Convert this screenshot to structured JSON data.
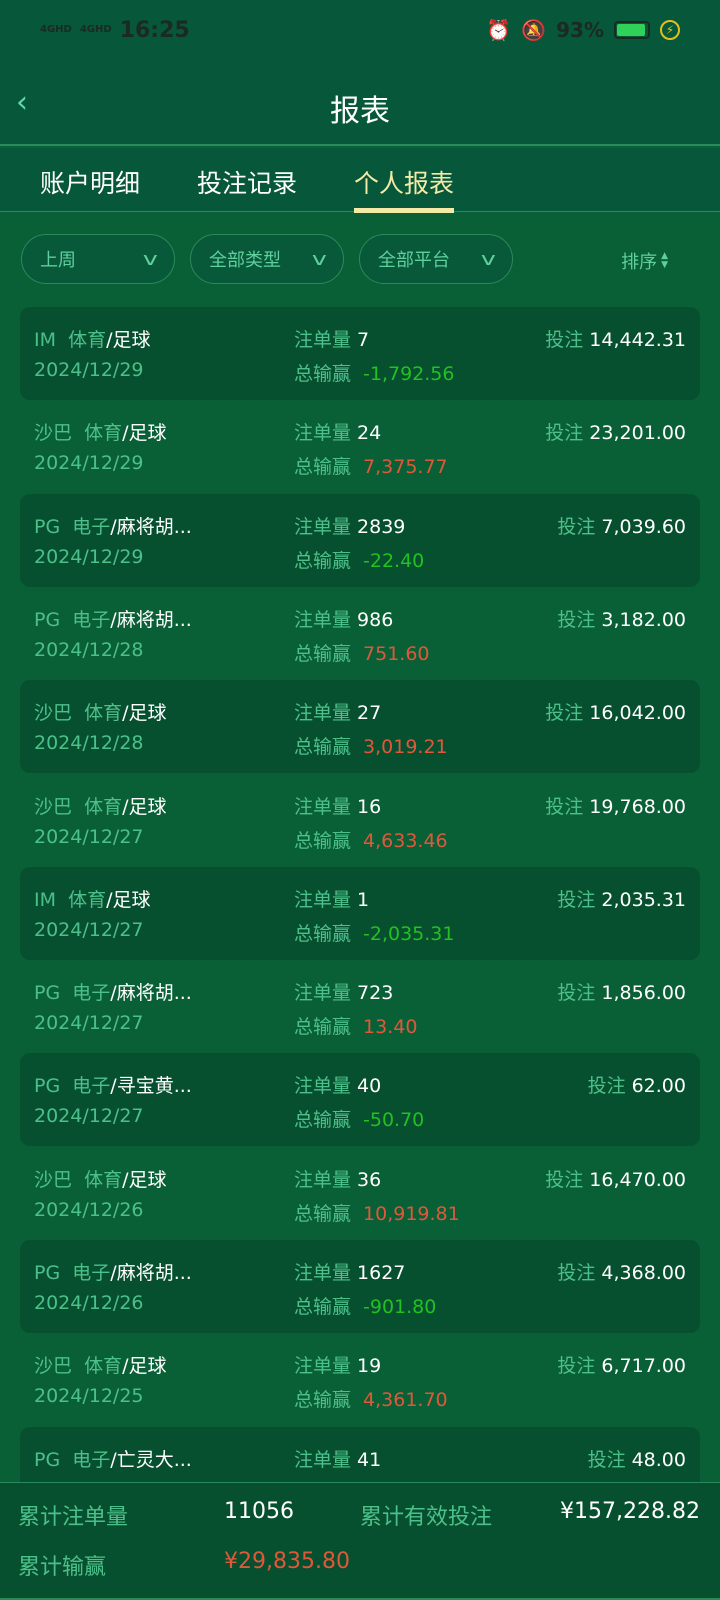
{
  "status_bar": {
    "network1": "4GHD",
    "network2": "4GHD",
    "time": "16:25",
    "battery": "93%",
    "battery_level": 0.93
  },
  "header": {
    "title": "报表"
  },
  "tabs": [
    {
      "label": "账户明细"
    },
    {
      "label": "投注记录"
    },
    {
      "label": "个人报表",
      "active": true
    }
  ],
  "filters": {
    "period": "上周",
    "type": "全部类型",
    "platform": "全部平台",
    "sort": "排序"
  },
  "labels": {
    "bets": "注单量",
    "winloss": "总输赢",
    "stake": "投注"
  },
  "rows": [
    {
      "platform": "IM",
      "cat": "体育",
      "game": "/足球",
      "date": "2024/12/29",
      "bets": "7",
      "winloss": "-1,792.56",
      "stake": "14,442.31"
    },
    {
      "platform": "沙巴",
      "cat": "体育",
      "game": "/足球",
      "date": "2024/12/29",
      "bets": "24",
      "winloss": "7,375.77",
      "stake": "23,201.00"
    },
    {
      "platform": "PG",
      "cat": "电子",
      "game": "/麻将胡...",
      "date": "2024/12/29",
      "bets": "2839",
      "winloss": "-22.40",
      "stake": "7,039.60"
    },
    {
      "platform": "PG",
      "cat": "电子",
      "game": "/麻将胡...",
      "date": "2024/12/28",
      "bets": "986",
      "winloss": "751.60",
      "stake": "3,182.00"
    },
    {
      "platform": "沙巴",
      "cat": "体育",
      "game": "/足球",
      "date": "2024/12/28",
      "bets": "27",
      "winloss": "3,019.21",
      "stake": "16,042.00"
    },
    {
      "platform": "沙巴",
      "cat": "体育",
      "game": "/足球",
      "date": "2024/12/27",
      "bets": "16",
      "winloss": "4,633.46",
      "stake": "19,768.00"
    },
    {
      "platform": "IM",
      "cat": "体育",
      "game": "/足球",
      "date": "2024/12/27",
      "bets": "1",
      "winloss": "-2,035.31",
      "stake": "2,035.31"
    },
    {
      "platform": "PG",
      "cat": "电子",
      "game": "/麻将胡...",
      "date": "2024/12/27",
      "bets": "723",
      "winloss": "13.40",
      "stake": "1,856.00"
    },
    {
      "platform": "PG",
      "cat": "电子",
      "game": "/寻宝黄...",
      "date": "2024/12/27",
      "bets": "40",
      "winloss": "-50.70",
      "stake": "62.00"
    },
    {
      "platform": "沙巴",
      "cat": "体育",
      "game": "/足球",
      "date": "2024/12/26",
      "bets": "36",
      "winloss": "10,919.81",
      "stake": "16,470.00"
    },
    {
      "platform": "PG",
      "cat": "电子",
      "game": "/麻将胡...",
      "date": "2024/12/26",
      "bets": "1627",
      "winloss": "-901.80",
      "stake": "4,368.00"
    },
    {
      "platform": "沙巴",
      "cat": "体育",
      "game": "/足球",
      "date": "2024/12/25",
      "bets": "19",
      "winloss": "4,361.70",
      "stake": "6,717.00"
    },
    {
      "platform": "PG",
      "cat": "电子",
      "game": "/亡灵大...",
      "date": "",
      "bets": "41",
      "winloss": "",
      "stake": "48.00"
    }
  ],
  "footer": {
    "total_bets_label": "累计注单量",
    "total_bets": "11056",
    "total_valid_label": "累计有效投注",
    "total_valid": "¥157,228.82",
    "total_winloss_label": "累计输赢",
    "total_winloss": "¥29,835.80"
  },
  "colors": {
    "bg": "#0a6036",
    "card": "#06502f",
    "label": "#4cc08a",
    "positive": "#e0583a",
    "negative": "#22c022",
    "active_tab": "#f3eaa8"
  }
}
